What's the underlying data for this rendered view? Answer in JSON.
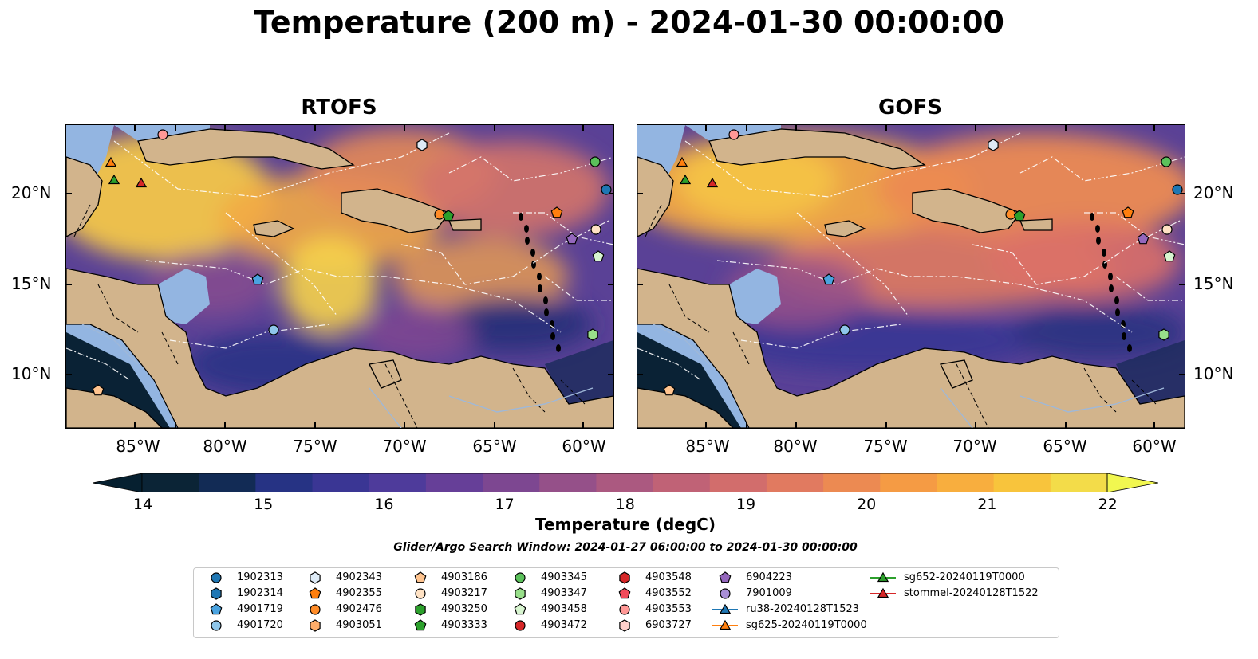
{
  "title": "Temperature (200 m) - 2024-01-30 00:00:00",
  "panels": [
    {
      "title": "RTOFS",
      "variant": "rtofs"
    },
    {
      "title": "GOFS",
      "variant": "gofs"
    }
  ],
  "lat_labels": [
    "20°N",
    "15°N",
    "10°N"
  ],
  "lon_labels": [
    "85°W",
    "80°W",
    "75°W",
    "70°W",
    "65°W",
    "60°W"
  ],
  "colorbar": {
    "label": "Temperature (degC)",
    "ticks": [
      "14",
      "15",
      "16",
      "17",
      "18",
      "19",
      "20",
      "21",
      "22"
    ],
    "colors": [
      "#0b2436",
      "#122b55",
      "#263384",
      "#3a3694",
      "#4e3b9b",
      "#663f98",
      "#7d4791",
      "#955089",
      "#ab5980",
      "#c06276",
      "#d26d6c",
      "#e17a60",
      "#ec8a52",
      "#f59b44",
      "#f8ae3e",
      "#f8c43c",
      "#f3dc49"
    ],
    "under_color": "#062030",
    "over_color": "#f1f750"
  },
  "search_window": "Glider/Argo Search Window: 2024-01-27 06:00:00 to 2024-01-30 00:00:00",
  "legend": [
    {
      "label": "1902313",
      "marker": "circle",
      "color": "#1f77b4"
    },
    {
      "label": "1902314",
      "marker": "hexagon",
      "color": "#1f77b4"
    },
    {
      "label": "4901719",
      "marker": "pentagon",
      "color": "#4aa3e0"
    },
    {
      "label": "4901720",
      "marker": "circle",
      "color": "#8ec6ea"
    },
    {
      "label": "4902343",
      "marker": "hexagon",
      "color": "#deebf7"
    },
    {
      "label": "4902355",
      "marker": "pentagon",
      "color": "#ff7f0e"
    },
    {
      "label": "4902476",
      "marker": "circle",
      "color": "#ff8c28"
    },
    {
      "label": "4903051",
      "marker": "hexagon",
      "color": "#ffad6a"
    },
    {
      "label": "4903186",
      "marker": "pentagon",
      "color": "#ffc48f"
    },
    {
      "label": "4903217",
      "marker": "circle",
      "color": "#ffe2c4"
    },
    {
      "label": "4903250",
      "marker": "hexagon",
      "color": "#2ca02c"
    },
    {
      "label": "4903333",
      "marker": "pentagon",
      "color": "#2ca02c"
    },
    {
      "label": "4903345",
      "marker": "circle",
      "color": "#5bc15b"
    },
    {
      "label": "4903347",
      "marker": "hexagon",
      "color": "#98df8a"
    },
    {
      "label": "4903458",
      "marker": "pentagon",
      "color": "#d8f5d0"
    },
    {
      "label": "4903472",
      "marker": "circle",
      "color": "#d62728"
    },
    {
      "label": "4903548",
      "marker": "hexagon",
      "color": "#d62728"
    },
    {
      "label": "4903552",
      "marker": "pentagon",
      "color": "#f04b5a"
    },
    {
      "label": "4903553",
      "marker": "circle",
      "color": "#ff9896"
    },
    {
      "label": "6903727",
      "marker": "hexagon",
      "color": "#ffd0cc"
    },
    {
      "label": "6904223",
      "marker": "pentagon",
      "color": "#9467bd"
    },
    {
      "label": "7901009",
      "marker": "circle",
      "color": "#a98fd6"
    },
    {
      "label": "ru38-20240128T1523",
      "marker": "triangle-line",
      "color": "#1f77b4"
    },
    {
      "label": "sg625-20240119T0000",
      "marker": "triangle-line",
      "color": "#ff7f0e"
    },
    {
      "label": "sg652-20240119T0000",
      "marker": "triangle-line",
      "color": "#2ca02c"
    },
    {
      "label": "stommel-20240128T1522",
      "marker": "triangle-line",
      "color": "#d62728"
    }
  ]
}
